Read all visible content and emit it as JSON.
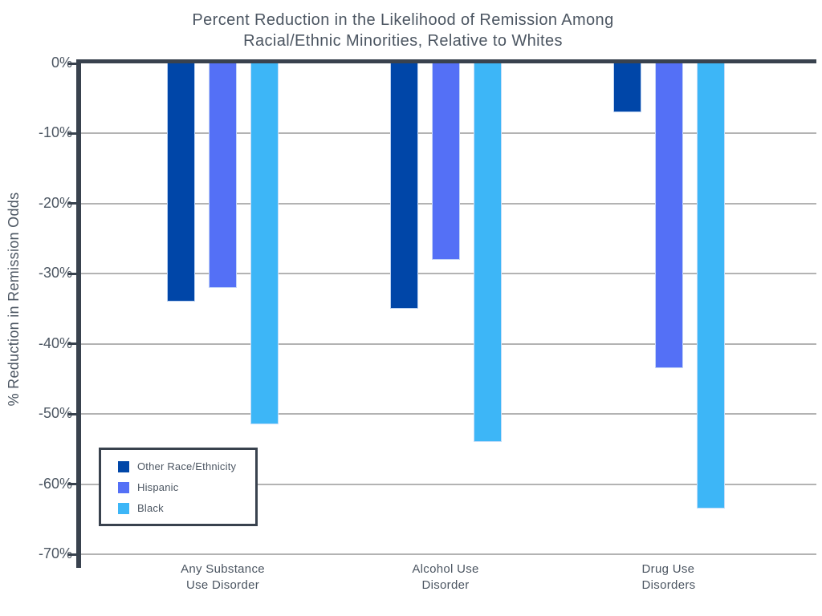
{
  "chart_data": {
    "type": "bar",
    "title": "Percent Reduction in the Likelihood of Remission Among\nRacial/Ethnic Minorities, Relative to Whites",
    "ylabel": "% Reduction in Remission Odds",
    "xlabel": "",
    "categories": [
      "Any Substance\nUse Disorder",
      "Alcohol Use\nDisorder",
      "Drug Use\nDisorders"
    ],
    "series": [
      {
        "name": "Other Race/Ethnicity",
        "color": "#0046a8",
        "values": [
          -34,
          -35,
          -7
        ]
      },
      {
        "name": "Hispanic",
        "color": "#5470f6",
        "values": [
          -32,
          -28,
          -43.5
        ]
      },
      {
        "name": "Black",
        "color": "#3db6f7",
        "values": [
          -51.5,
          -54,
          -63.5
        ]
      }
    ],
    "ylim": [
      -70,
      0
    ],
    "ytick_labels": [
      "0%",
      "-10%",
      "-20%",
      "-30%",
      "-40%",
      "-50%",
      "-60%",
      "-70%"
    ],
    "ytick_values": [
      0,
      -10,
      -20,
      -30,
      -40,
      -50,
      -60,
      -70
    ],
    "grid": true,
    "legend_position": "bottom-left",
    "colors": {
      "axis": "#39424e",
      "gridline": "#b3b3b3",
      "text": "#4c5662",
      "background": "#ffffff"
    }
  }
}
